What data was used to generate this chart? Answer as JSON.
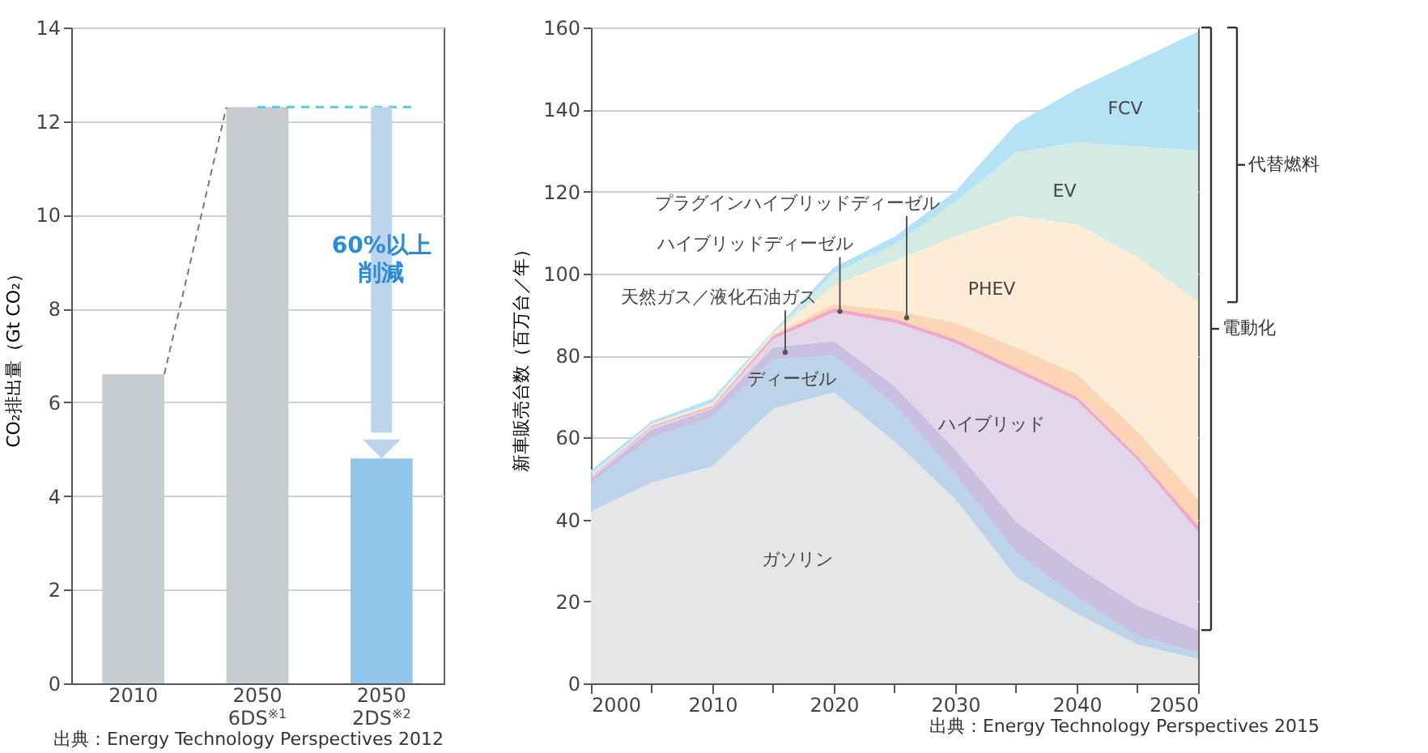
{
  "chart_data": [
    {
      "type": "bar",
      "categories": [
        "2010",
        "2050\n6DS$^{※1}$",
        "2050\n2DS$^{※2}$"
      ],
      "values": [
        6.6,
        12.3,
        4.8
      ],
      "colors": [
        "#c8cbcf",
        "#c8cbcf",
        "#92c5ea"
      ],
      "ylabel": "CO₂排出量（Gt CO₂）",
      "ylim": [
        0,
        14
      ],
      "yticks": [
        0,
        2,
        4,
        6,
        8,
        10,
        12,
        14
      ],
      "grid": "y",
      "ref_lines": [
        {
          "axis": "y",
          "value": 12.3,
          "color": "#5bc8f0",
          "line_style": "dashed"
        }
      ],
      "annotations": [
        "60%以上削減",
        "出典：Energy Technology Perspectives 2012"
      ]
    },
    {
      "type": "area",
      "stacked": true,
      "x": [
        2000,
        2005,
        2010,
        2015,
        2020,
        2025,
        2030,
        2035,
        2040,
        2045,
        2050
      ],
      "ylabel": "新車販売台数（百万台／年）",
      "xlim": [
        2000,
        2050
      ],
      "ylim": [
        0,
        160
      ],
      "yticks": [
        0,
        20,
        40,
        60,
        80,
        100,
        120,
        140,
        160
      ],
      "xticks": [
        2000,
        {
          "value": 2005,
          "label": null
        },
        2010,
        {
          "value": 2015,
          "label": null
        },
        2020,
        {
          "value": 2025,
          "label": null
        },
        2030,
        {
          "value": 2035,
          "label": null
        },
        2040,
        {
          "value": 2045,
          "label": null
        },
        2050
      ],
      "grid": "y",
      "series": [
        {
          "name": "ガソリン",
          "color": "#e5e6e8",
          "values": [
            42,
            49,
            53,
            67,
            71,
            59,
            45,
            26,
            17,
            9.5,
            6
          ]
        },
        {
          "name": "ディーゼル",
          "color": "#bcd3ea",
          "values": [
            7,
            11,
            12,
            12,
            9,
            9,
            6,
            6,
            4,
            2,
            1.5
          ]
        },
        {
          "name": "天然ガス／液化石油ガス",
          "color": "#c9bfdf",
          "values": [
            1,
            2,
            2,
            3,
            3.5,
            4.5,
            6,
            7.5,
            7.5,
            7.5,
            5.5
          ]
        },
        {
          "name": "ハイブリッド",
          "color": "#e1d6ea",
          "values": [
            0.3,
            0.5,
            0.3,
            2,
            7,
            15.5,
            26,
            36.5,
            40.5,
            35.5,
            24
          ]
        },
        {
          "name": "ハイブリッドディーゼル",
          "color": "#f0a8c8",
          "values": [
            0.2,
            0.3,
            0.3,
            0.8,
            1,
            1,
            1,
            1,
            1,
            1,
            1.5
          ]
        },
        {
          "name": "プラグインハイブリッドディーゼル",
          "color": "#fcd5b5",
          "values": [
            0.2,
            0.2,
            0.3,
            0.4,
            1,
            2,
            4,
            5,
            5.5,
            6,
            6.5
          ]
        },
        {
          "name": "PHEV",
          "color": "#fdedd6",
          "values": [
            0.2,
            0.2,
            0.3,
            0.3,
            4.5,
            12,
            21,
            32,
            36.5,
            42.5,
            48
          ]
        },
        {
          "name": "EV",
          "color": "#d3ebe3",
          "values": [
            0.1,
            0.1,
            0.3,
            0.2,
            3,
            4,
            8.5,
            15.5,
            20,
            27,
            37
          ]
        },
        {
          "name": "FCV",
          "color": "#b5e3f5",
          "values": [
            1,
            0.7,
            1,
            0.3,
            1.5,
            2,
            2.5,
            7,
            13,
            21,
            29
          ]
        }
      ],
      "annotations": [
        "電動化",
        "代替燃料",
        "出典：Energy Technology Perspectives 2015"
      ]
    }
  ]
}
